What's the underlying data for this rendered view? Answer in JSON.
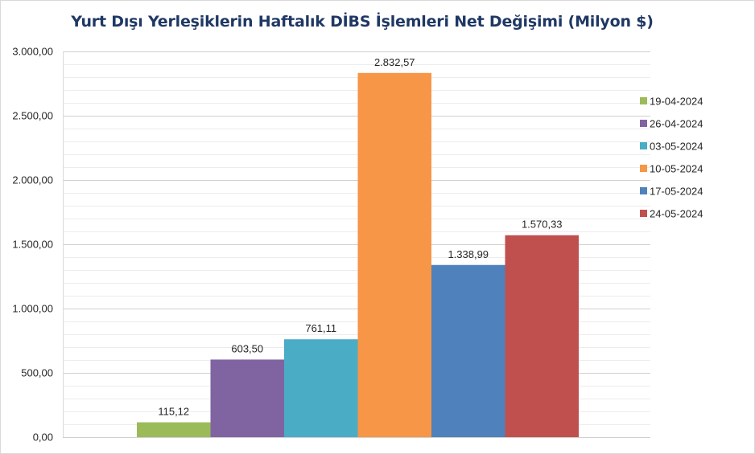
{
  "chart_data": {
    "type": "bar",
    "title": "Yurt Dışı Yerleşiklerin Haftalık DİBS İşlemleri Net Değişimi (Milyon $)",
    "xlabel": "",
    "ylabel": "",
    "ylim": [
      0,
      3000
    ],
    "y_ticks": [
      "0,00",
      "500,00",
      "1.000,00",
      "1.500,00",
      "2.000,00",
      "2.500,00",
      "3.000,00"
    ],
    "grid": true,
    "legend_position": "right",
    "series": [
      {
        "name": "19-04-2024",
        "value": 115.12,
        "label": "115,12",
        "color": "#9bbb59"
      },
      {
        "name": "26-04-2024",
        "value": 603.5,
        "label": "603,50",
        "color": "#8064a2"
      },
      {
        "name": "03-05-2024",
        "value": 761.11,
        "label": "761,11",
        "color": "#4bacc6"
      },
      {
        "name": "10-05-2024",
        "value": 2832.57,
        "label": "2.832,57",
        "color": "#f79646"
      },
      {
        "name": "17-05-2024",
        "value": 1338.99,
        "label": "1.338,99",
        "color": "#4f81bd"
      },
      {
        "name": "24-05-2024",
        "value": 1570.33,
        "label": "1.570,33",
        "color": "#c0504d"
      }
    ]
  }
}
